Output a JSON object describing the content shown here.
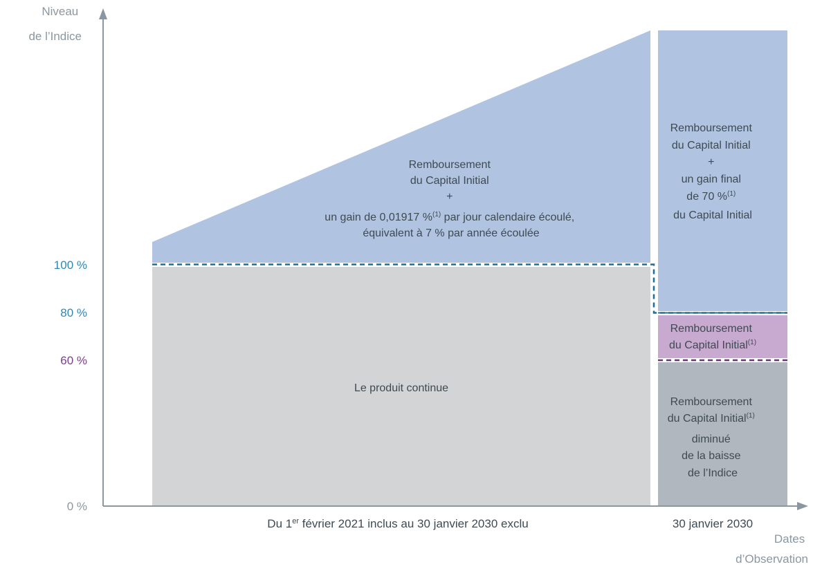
{
  "axes": {
    "y_label_line1": "Niveau",
    "y_label_line2": "de l’Indice",
    "x_label_line1": "Dates",
    "x_label_line2": "d’Observation"
  },
  "levels": [
    {
      "label": "100 %",
      "value": 100,
      "color": "#2f86b3"
    },
    {
      "label": "80 %",
      "value": 80,
      "color": "#2f86b3"
    },
    {
      "label": "60 %",
      "value": 60,
      "color": "#7a3f86"
    },
    {
      "label": "0 %",
      "value": 0,
      "color": "#8a97a0"
    }
  ],
  "periods": {
    "left": {
      "pre": "Du 1",
      "sup": "er",
      "post": " février 2021 inclus au 30 janvier 2030 exclu"
    },
    "right": "30 janvier 2030"
  },
  "zones": {
    "left_gain": {
      "line1": "Remboursement",
      "line2": "du Capital Initial",
      "line3": "+",
      "line4_pre": "un gain de 0,01917 %",
      "line4_sup": "(1)",
      "line4_post": " par jour calendaire écoulé,",
      "line5": "équivalent à 7 % par année écoulée"
    },
    "left_continue": {
      "line1": "Le produit continue"
    },
    "right_gain": {
      "line1": "Remboursement",
      "line2": "du Capital Initial",
      "line3": "+",
      "line4": "un gain final",
      "line5_pre": "de 70 %",
      "line5_sup": "(1)",
      "line6": "du Capital Initial"
    },
    "right_capital": {
      "line1": "Remboursement",
      "line2_pre": "du Capital Initial",
      "line2_sup": "(1)"
    },
    "right_loss": {
      "line1": "Remboursement",
      "line2_pre": "du Capital Initial",
      "line2_sup": "(1)",
      "line3": "diminué",
      "line4": "de la baisse",
      "line5": "de l’Indice"
    }
  },
  "colors": {
    "blue_zone": "#b0c3e0",
    "grey_zone": "#d3d4d6",
    "purple_zone": "#c8a9cf",
    "dark_grey_zone": "#b1b7bf",
    "barrier_blue": "#1f6e97",
    "barrier_purple": "#6c2f7a",
    "axis": "#8a97a0"
  }
}
